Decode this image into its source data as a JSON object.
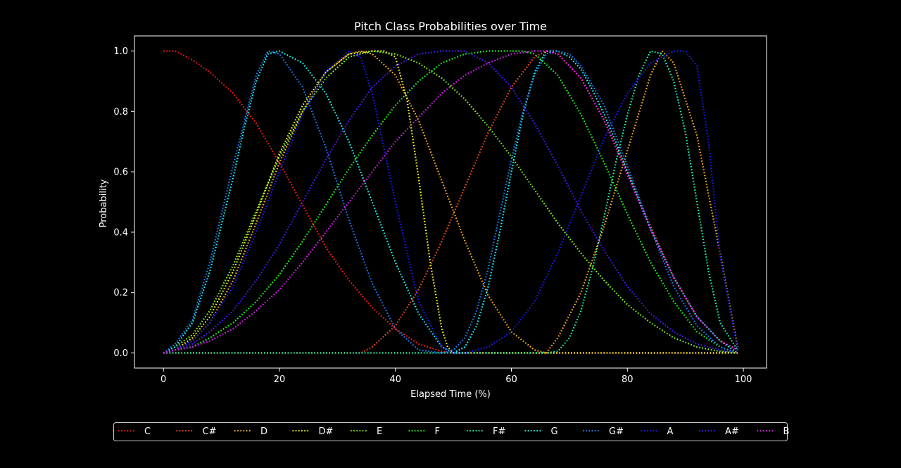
{
  "chart_data": {
    "type": "line",
    "title": "Pitch Class Probabilities over Time",
    "xlabel": "Elapsed Time (%)",
    "ylabel": "Probability",
    "xlim": [
      -5,
      104
    ],
    "ylim": [
      -0.05,
      1.05
    ],
    "xticks": [
      0,
      20,
      40,
      60,
      80,
      100
    ],
    "yticks": [
      "0.0",
      "0.2",
      "0.4",
      "0.6",
      "0.8",
      "1.0"
    ],
    "grid": false,
    "line_style": "dotted",
    "legend_position": "bottom",
    "series": [
      {
        "name": "C",
        "color": "#ff1a1a",
        "x": [
          0,
          2,
          5,
          8,
          12,
          16,
          20,
          24,
          28,
          32,
          36,
          40,
          44,
          48,
          50,
          52,
          56,
          60,
          64,
          68,
          72,
          76,
          80,
          84,
          88,
          92,
          96,
          99
        ],
        "y": [
          1.0,
          1.0,
          0.97,
          0.93,
          0.86,
          0.76,
          0.63,
          0.49,
          0.35,
          0.24,
          0.15,
          0.08,
          0.03,
          0.005,
          0.0,
          0.0,
          0.0,
          0.0,
          0.0,
          0.0,
          0.0,
          0.0,
          0.0,
          0.0,
          0.0,
          0.0,
          0.0,
          0.0
        ]
      },
      {
        "name": "C#",
        "color": "#ff4d1a",
        "x": [
          0,
          2,
          5,
          8,
          12,
          16,
          18,
          20,
          22,
          24,
          26,
          28,
          30,
          32,
          33,
          34,
          36,
          40,
          44,
          48,
          52,
          56,
          60,
          64,
          66,
          68,
          72,
          76,
          80,
          84,
          88,
          92,
          96,
          99
        ],
        "y": [
          0.0,
          0.0,
          0.0,
          0.0,
          0.0,
          0.0,
          0.0,
          0.0,
          0.0,
          0.0,
          0.0,
          0.0,
          0.0,
          0.0,
          0.0,
          0.0,
          0.02,
          0.09,
          0.21,
          0.37,
          0.55,
          0.73,
          0.88,
          0.98,
          1.0,
          0.99,
          0.91,
          0.77,
          0.6,
          0.42,
          0.25,
          0.12,
          0.04,
          0.01
        ]
      },
      {
        "name": "D",
        "color": "#ffb31a",
        "x": [
          0,
          2,
          5,
          8,
          12,
          16,
          20,
          24,
          28,
          32,
          34,
          36,
          40,
          44,
          48,
          52,
          56,
          60,
          64,
          66,
          68,
          72,
          76,
          80,
          84,
          86,
          88,
          92,
          96,
          99
        ],
        "y": [
          0.0,
          0.01,
          0.04,
          0.1,
          0.24,
          0.43,
          0.63,
          0.8,
          0.93,
          0.99,
          1.0,
          0.99,
          0.92,
          0.77,
          0.57,
          0.37,
          0.19,
          0.07,
          0.01,
          0.0,
          0.05,
          0.2,
          0.42,
          0.67,
          0.92,
          1.0,
          0.96,
          0.72,
          0.33,
          0.02
        ]
      },
      {
        "name": "D#",
        "color": "#ffff1a",
        "x": [
          0,
          2,
          5,
          8,
          12,
          16,
          20,
          24,
          28,
          32,
          36,
          38,
          40,
          42,
          44,
          46,
          48,
          49,
          50,
          52,
          56,
          60,
          64,
          68,
          72,
          76,
          80,
          84,
          88,
          92,
          96,
          99
        ],
        "y": [
          0.0,
          0.01,
          0.05,
          0.12,
          0.27,
          0.46,
          0.66,
          0.82,
          0.93,
          0.99,
          1.0,
          1.0,
          0.98,
          0.84,
          0.58,
          0.3,
          0.08,
          0.02,
          0.0,
          0.0,
          0.0,
          0.0,
          0.0,
          0.0,
          0.0,
          0.0,
          0.0,
          0.0,
          0.0,
          0.0,
          0.0,
          0.0
        ]
      },
      {
        "name": "E",
        "color": "#80ff1a",
        "x": [
          0,
          2,
          5,
          8,
          12,
          16,
          20,
          24,
          28,
          32,
          36,
          40,
          44,
          48,
          52,
          56,
          60,
          64,
          68,
          72,
          76,
          80,
          84,
          88,
          92,
          96,
          99
        ],
        "y": [
          0.0,
          0.02,
          0.06,
          0.14,
          0.29,
          0.47,
          0.65,
          0.8,
          0.91,
          0.98,
          1.0,
          0.99,
          0.96,
          0.91,
          0.84,
          0.75,
          0.65,
          0.54,
          0.43,
          0.33,
          0.24,
          0.16,
          0.1,
          0.05,
          0.02,
          0.005,
          0.0
        ]
      },
      {
        "name": "F",
        "color": "#1aff1a",
        "x": [
          0,
          2,
          5,
          8,
          12,
          16,
          20,
          24,
          28,
          32,
          36,
          40,
          44,
          48,
          52,
          56,
          60,
          62,
          64,
          68,
          72,
          76,
          80,
          84,
          88,
          92,
          96,
          99
        ],
        "y": [
          0.0,
          0.01,
          0.02,
          0.05,
          0.1,
          0.17,
          0.26,
          0.37,
          0.49,
          0.61,
          0.72,
          0.82,
          0.9,
          0.96,
          0.99,
          1.0,
          1.0,
          1.0,
          0.99,
          0.92,
          0.79,
          0.63,
          0.46,
          0.3,
          0.17,
          0.07,
          0.02,
          0.0
        ]
      },
      {
        "name": "F#",
        "color": "#1affb3",
        "x": [
          0,
          2,
          5,
          8,
          12,
          16,
          20,
          24,
          28,
          32,
          36,
          40,
          44,
          48,
          52,
          56,
          60,
          64,
          66,
          68,
          70,
          72,
          74,
          76,
          78,
          80,
          82,
          84,
          86,
          88,
          90,
          92,
          94,
          96,
          99
        ],
        "y": [
          0.0,
          0.0,
          0.0,
          0.0,
          0.0,
          0.0,
          0.0,
          0.0,
          0.0,
          0.0,
          0.0,
          0.0,
          0.0,
          0.0,
          0.0,
          0.0,
          0.0,
          0.0,
          0.0,
          0.005,
          0.05,
          0.14,
          0.28,
          0.45,
          0.63,
          0.79,
          0.92,
          1.0,
          0.99,
          0.9,
          0.73,
          0.5,
          0.27,
          0.1,
          0.01
        ]
      },
      {
        "name": "G",
        "color": "#1affff",
        "x": [
          0,
          2,
          5,
          8,
          12,
          14,
          16,
          18,
          20,
          24,
          28,
          32,
          36,
          40,
          44,
          48,
          50,
          52,
          54,
          56,
          58,
          60,
          62,
          64,
          66,
          68,
          70,
          72,
          74,
          76,
          78,
          80,
          84,
          88,
          92,
          96,
          99
        ],
        "y": [
          0.0,
          0.02,
          0.1,
          0.27,
          0.58,
          0.75,
          0.9,
          0.99,
          1.0,
          0.96,
          0.86,
          0.7,
          0.5,
          0.3,
          0.13,
          0.02,
          0.0,
          0.02,
          0.09,
          0.22,
          0.4,
          0.6,
          0.79,
          0.93,
          1.0,
          1.0,
          0.98,
          0.94,
          0.87,
          0.79,
          0.7,
          0.6,
          0.41,
          0.25,
          0.12,
          0.04,
          0.0
        ]
      },
      {
        "name": "G#",
        "color": "#1a80ff",
        "x": [
          0,
          2,
          5,
          8,
          12,
          16,
          18,
          20,
          24,
          28,
          32,
          36,
          40,
          44,
          48,
          50,
          52,
          54,
          56,
          58,
          60,
          62,
          64,
          66,
          68,
          70,
          72,
          76,
          80,
          84,
          88,
          92,
          96,
          99
        ],
        "y": [
          0.0,
          0.03,
          0.11,
          0.3,
          0.62,
          0.92,
          1.0,
          0.99,
          0.88,
          0.68,
          0.44,
          0.23,
          0.08,
          0.01,
          0.0,
          0.01,
          0.05,
          0.14,
          0.28,
          0.46,
          0.64,
          0.8,
          0.92,
          0.99,
          1.0,
          0.99,
          0.95,
          0.82,
          0.62,
          0.41,
          0.22,
          0.09,
          0.02,
          0.0
        ]
      },
      {
        "name": "A",
        "color": "#1a1aff",
        "x": [
          0,
          2,
          5,
          8,
          12,
          16,
          20,
          24,
          28,
          32,
          34,
          36,
          40,
          44,
          48,
          50,
          52,
          56,
          60,
          64,
          68,
          72,
          76,
          80,
          84,
          88,
          90,
          92,
          94,
          96,
          99
        ],
        "y": [
          0.0,
          0.01,
          0.04,
          0.1,
          0.22,
          0.4,
          0.6,
          0.79,
          0.93,
          1.0,
          0.98,
          0.86,
          0.5,
          0.17,
          0.02,
          0.0,
          0.0,
          0.02,
          0.07,
          0.17,
          0.33,
          0.52,
          0.71,
          0.86,
          0.96,
          1.0,
          1.0,
          0.95,
          0.7,
          0.32,
          0.01
        ]
      },
      {
        "name": "A#",
        "color": "#4d1aff",
        "x": [
          0,
          2,
          5,
          8,
          12,
          16,
          20,
          24,
          28,
          32,
          36,
          40,
          44,
          48,
          50,
          52,
          54,
          56,
          60,
          64,
          68,
          72,
          76,
          80,
          84,
          88,
          92,
          96,
          99
        ],
        "y": [
          0.0,
          0.01,
          0.03,
          0.07,
          0.14,
          0.24,
          0.36,
          0.5,
          0.64,
          0.77,
          0.88,
          0.95,
          0.99,
          1.0,
          1.0,
          1.0,
          0.98,
          0.96,
          0.88,
          0.76,
          0.62,
          0.47,
          0.34,
          0.22,
          0.13,
          0.07,
          0.03,
          0.01,
          0.0
        ]
      },
      {
        "name": "B",
        "color": "#e61aff",
        "x": [
          0,
          2,
          5,
          8,
          12,
          16,
          20,
          24,
          28,
          32,
          36,
          40,
          44,
          48,
          52,
          56,
          60,
          64,
          66,
          68,
          72,
          76,
          80,
          84,
          88,
          92,
          96,
          99
        ],
        "y": [
          0.0,
          0.01,
          0.02,
          0.04,
          0.08,
          0.14,
          0.21,
          0.3,
          0.4,
          0.5,
          0.6,
          0.7,
          0.78,
          0.86,
          0.92,
          0.96,
          0.99,
          1.0,
          1.0,
          0.99,
          0.91,
          0.77,
          0.59,
          0.41,
          0.25,
          0.12,
          0.04,
          0.01
        ]
      }
    ]
  }
}
